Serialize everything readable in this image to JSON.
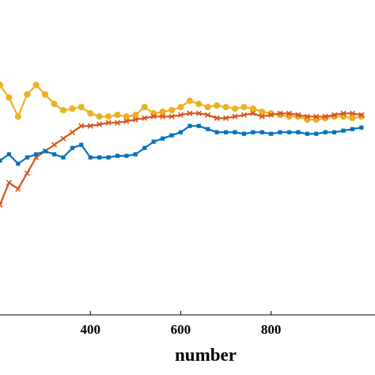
{
  "chart_data": {
    "type": "line",
    "title": "",
    "xlabel": "number",
    "ylabel": "",
    "xlim": [
      200,
      1030
    ],
    "ylim": [
      0,
      10
    ],
    "xticks": [
      "400",
      "600",
      "800"
    ],
    "grid": false,
    "series": [
      {
        "color": "#edb120",
        "marker": "circle",
        "x": [
          200,
          220,
          240,
          260,
          280,
          300,
          320,
          340,
          360,
          380,
          400,
          420,
          440,
          460,
          480,
          500,
          520,
          540,
          560,
          580,
          600,
          620,
          640,
          660,
          680,
          700,
          720,
          740,
          760,
          780,
          800,
          820,
          840,
          860,
          880,
          900,
          920,
          940,
          960,
          980,
          1000
        ],
        "y": [
          7.3,
          6.9,
          6.3,
          7.0,
          7.3,
          7.0,
          6.7,
          6.5,
          6.55,
          6.6,
          6.4,
          6.3,
          6.3,
          6.35,
          6.3,
          6.35,
          6.6,
          6.4,
          6.45,
          6.5,
          6.6,
          6.8,
          6.7,
          6.6,
          6.65,
          6.6,
          6.55,
          6.6,
          6.55,
          6.45,
          6.4,
          6.35,
          6.3,
          6.3,
          6.2,
          6.2,
          6.25,
          6.3,
          6.3,
          6.25,
          6.3
        ]
      },
      {
        "color": "#d95319",
        "marker": "x",
        "x": [
          200,
          220,
          240,
          260,
          280,
          300,
          320,
          340,
          360,
          380,
          400,
          420,
          440,
          460,
          480,
          500,
          520,
          540,
          560,
          580,
          600,
          620,
          640,
          660,
          680,
          700,
          720,
          740,
          760,
          780,
          800,
          820,
          840,
          860,
          880,
          900,
          920,
          940,
          960,
          980,
          1000
        ],
        "y": [
          3.5,
          4.2,
          4.0,
          4.5,
          5.0,
          5.2,
          5.4,
          5.6,
          5.8,
          6.0,
          6.0,
          6.05,
          6.1,
          6.1,
          6.15,
          6.2,
          6.25,
          6.3,
          6.3,
          6.3,
          6.35,
          6.4,
          6.4,
          6.35,
          6.25,
          6.25,
          6.3,
          6.35,
          6.4,
          6.3,
          6.35,
          6.4,
          6.4,
          6.35,
          6.3,
          6.3,
          6.3,
          6.35,
          6.4,
          6.4,
          6.35
        ]
      },
      {
        "color": "#0072bd",
        "marker": "square",
        "x": [
          200,
          220,
          240,
          260,
          280,
          300,
          320,
          340,
          360,
          380,
          400,
          420,
          440,
          460,
          480,
          500,
          520,
          540,
          560,
          580,
          600,
          620,
          640,
          660,
          680,
          700,
          720,
          740,
          760,
          780,
          800,
          820,
          840,
          860,
          880,
          900,
          920,
          940,
          960,
          980,
          1000
        ],
        "y": [
          4.9,
          5.1,
          4.8,
          5.0,
          5.1,
          5.2,
          5.1,
          5.0,
          5.3,
          5.4,
          5.0,
          5.0,
          5.0,
          5.05,
          5.05,
          5.1,
          5.3,
          5.5,
          5.6,
          5.7,
          5.8,
          6.0,
          6.0,
          5.9,
          5.8,
          5.8,
          5.8,
          5.75,
          5.8,
          5.8,
          5.75,
          5.8,
          5.8,
          5.8,
          5.75,
          5.75,
          5.8,
          5.8,
          5.85,
          5.9,
          5.95
        ]
      }
    ]
  }
}
